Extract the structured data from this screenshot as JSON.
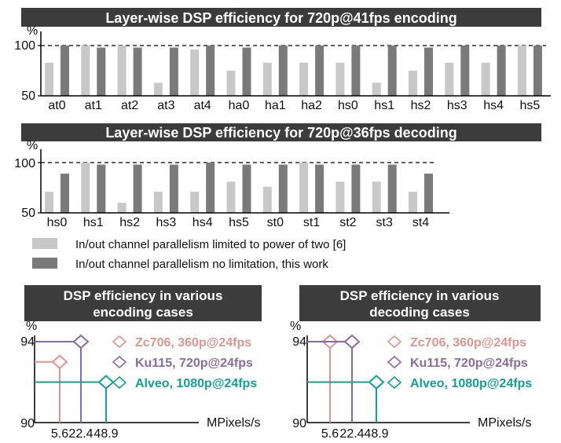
{
  "chart_data": [
    {
      "type": "bar",
      "title": "Layer-wise DSP efficiency for 720p@41fps encoding",
      "ylabel": "%",
      "ylim": [
        50,
        100
      ],
      "yticks": [
        "100",
        "50"
      ],
      "reference_line": 100,
      "categories": [
        "at0",
        "at1",
        "at2",
        "at3",
        "at4",
        "ha0",
        "ha1",
        "ha2",
        "hs0",
        "hs1",
        "hs2",
        "hs3",
        "hs4",
        "hs5"
      ],
      "series": [
        {
          "name": "In/out channel parallelism limited to power of two [6]",
          "color": "#c8c8c8",
          "values": [
            83,
            100,
            100,
            63,
            96,
            75,
            83,
            83,
            83,
            63,
            75,
            83,
            83,
            100
          ]
        },
        {
          "name": "In/out channel parallelism no limitation, this work",
          "color": "#7a7a7a",
          "values": [
            100,
            98,
            98,
            98,
            100,
            98,
            100,
            100,
            100,
            100,
            98,
            100,
            100,
            100
          ]
        }
      ]
    },
    {
      "type": "bar",
      "title": "Layer-wise DSP efficiency for 720p@36fps decoding",
      "ylabel": "%",
      "ylim": [
        50,
        100
      ],
      "yticks": [
        "100",
        "50"
      ],
      "reference_line": 100,
      "categories": [
        "hs0",
        "hs1",
        "hs2",
        "hs3",
        "hs4",
        "hs5",
        "st0",
        "st1",
        "st2",
        "st3",
        "st4"
      ],
      "series": [
        {
          "name": "In/out channel parallelism limited to power of two [6]",
          "color": "#c8c8c8",
          "values": [
            71,
            100,
            60,
            71,
            71,
            81,
            76,
            100,
            81,
            81,
            71
          ]
        },
        {
          "name": "In/out channel parallelism no limitation, this work",
          "color": "#7a7a7a",
          "values": [
            89,
            98,
            98,
            98,
            100,
            98,
            98,
            98,
            98,
            98,
            89
          ]
        }
      ]
    },
    {
      "type": "line",
      "title": "DSP efficiency in various encoding cases",
      "ylabel": "%",
      "xlabel": "MPixels/s",
      "ylim": [
        90,
        94
      ],
      "yticks": [
        "94",
        "90"
      ],
      "xticks": [
        "5.6",
        "22.4",
        "48.9"
      ],
      "series": [
        {
          "name": "Zc706, 360p@24fps",
          "color": "#e0958c",
          "x": 5.6,
          "y": 93.0
        },
        {
          "name": "Ku115, 720p@24fps",
          "color": "#8c6ba0",
          "x": 22.4,
          "y": 94.0
        },
        {
          "name": "Alveo, 1080p@24fps",
          "color": "#14a096",
          "x": 48.9,
          "y": 92.0
        }
      ]
    },
    {
      "type": "line",
      "title": "DSP efficiency in various decoding cases",
      "ylabel": "%",
      "xlabel": "MPixels/s",
      "ylim": [
        90,
        94
      ],
      "yticks": [
        "94",
        "90"
      ],
      "xticks": [
        "5.6",
        "22.4",
        "48.9"
      ],
      "series": [
        {
          "name": "Zc706, 360p@24fps",
          "color": "#e0958c",
          "x": 5.6,
          "y": 94.0
        },
        {
          "name": "Ku115, 720p@24fps",
          "color": "#8c6ba0",
          "x": 22.4,
          "y": 94.0
        },
        {
          "name": "Alveo, 1080p@24fps",
          "color": "#14a096",
          "x": 48.9,
          "y": 92.0
        }
      ]
    }
  ],
  "legend": [
    {
      "label": "In/out channel parallelism limited to power of two [6]",
      "color": "#c8c8c8"
    },
    {
      "label": "In/out channel parallelism no limitation, this work",
      "color": "#7a7a7a"
    }
  ],
  "titles": {
    "enc_line1": "DSP efficiency in various",
    "enc_line2": "encoding cases",
    "dec_line1": "DSP efficiency in various",
    "dec_line2": "decoding cases"
  }
}
